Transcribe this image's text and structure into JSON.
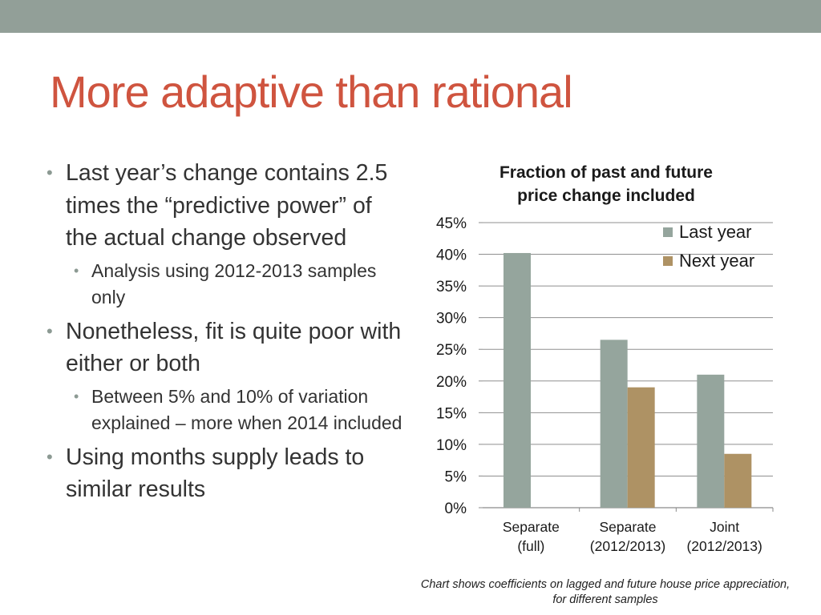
{
  "slide": {
    "title": "More adaptive than rational",
    "bullets": [
      {
        "text": "Last year’s change contains 2.5 times the “predictive power” of the actual change observed",
        "sub": [
          "Analysis using 2012-2013 samples only"
        ]
      },
      {
        "text": "Nonetheless, fit is quite poor with either or both",
        "sub": [
          "Between 5% and 10% of variation explained – more when 2014 included"
        ]
      },
      {
        "text": "Using months supply leads to similar results",
        "sub": []
      }
    ],
    "caption": "Chart shows coefficients on lagged and future house price appreciation, for different samples",
    "colors": {
      "top_bar": "#929f98",
      "title": "#cf543f",
      "last_year": "#95a59d",
      "next_year": "#ae9264"
    }
  },
  "chart_data": {
    "type": "bar",
    "title_lines": [
      "Fraction of past and future",
      "price change included"
    ],
    "categories": [
      [
        "Separate",
        "(full)"
      ],
      [
        "Separate",
        "(2012/2013)"
      ],
      [
        "Joint",
        "(2012/2013)"
      ]
    ],
    "series": [
      {
        "name": "Last year",
        "values": [
          40.2,
          26.5,
          21.0
        ],
        "color": "#95a59d"
      },
      {
        "name": "Next year",
        "values": [
          null,
          19.0,
          8.5
        ],
        "color": "#ae9264"
      }
    ],
    "yticks": [
      "0%",
      "5%",
      "10%",
      "15%",
      "20%",
      "25%",
      "30%",
      "35%",
      "40%",
      "45%"
    ],
    "ylim": [
      0,
      45
    ],
    "ystep": 5,
    "grid": true,
    "legend": "top-right"
  }
}
